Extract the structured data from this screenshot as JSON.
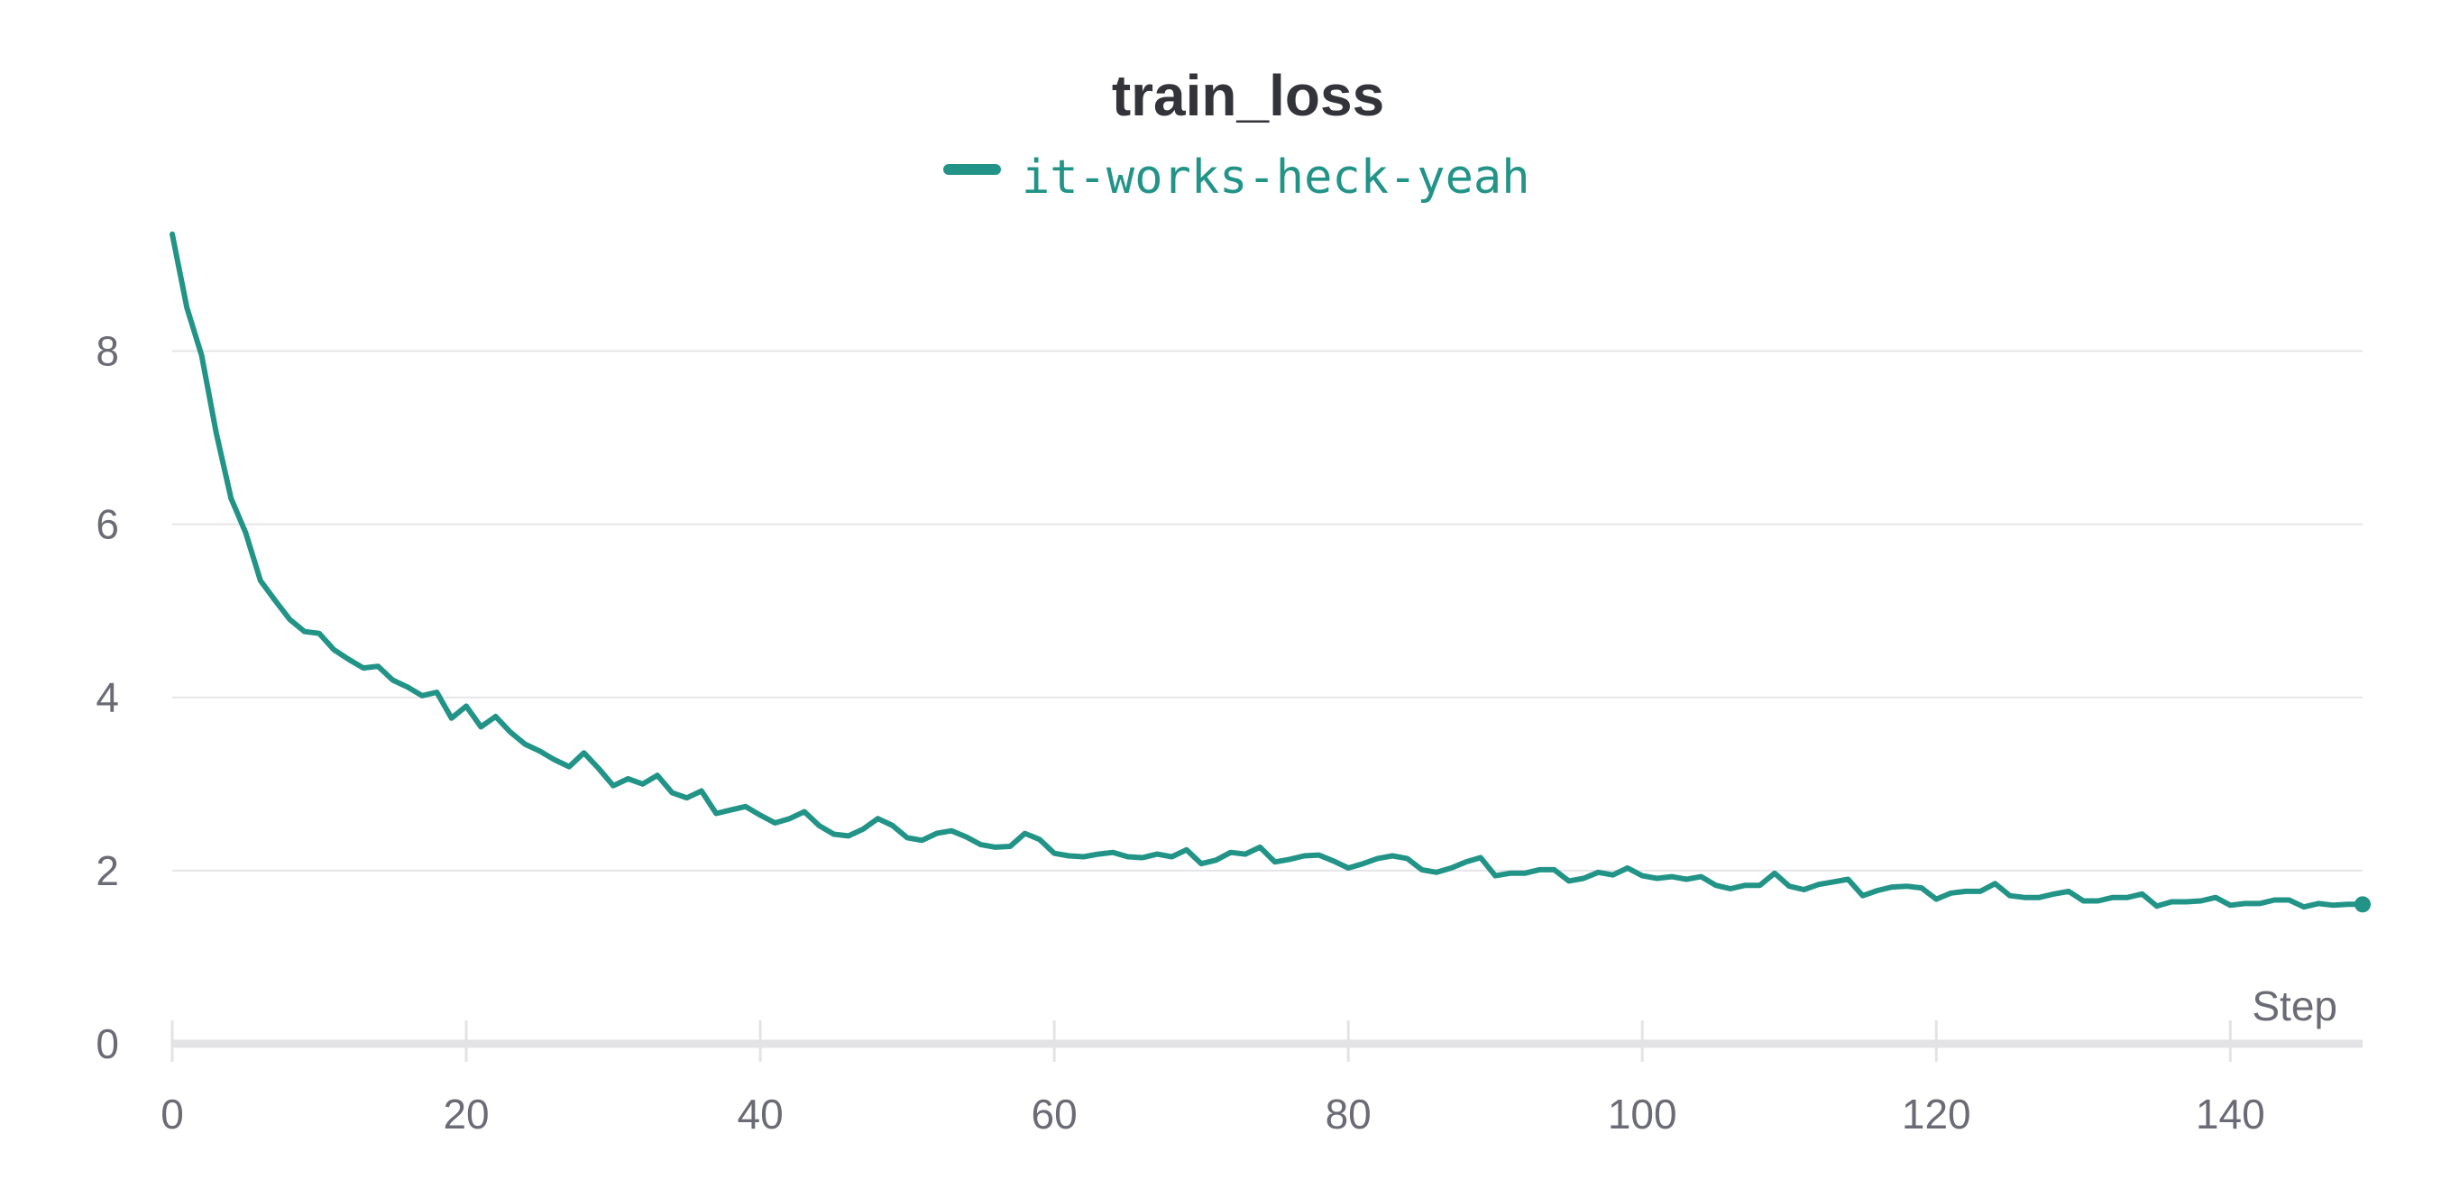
{
  "colors": {
    "series": "#229487",
    "grid": "#e5e5e8",
    "axis": "#e3e3e6",
    "text": "#6b6b76",
    "title": "#33333a"
  },
  "chart_data": {
    "type": "line",
    "title": "train_loss",
    "xlabel": "Step",
    "ylabel": "",
    "xlim": [
      0,
      149
    ],
    "ylim": [
      0,
      9.4
    ],
    "x_ticks": [
      0,
      20,
      40,
      60,
      80,
      100,
      120,
      140
    ],
    "y_ticks": [
      0,
      2,
      4,
      6,
      8
    ],
    "grid": true,
    "legend_position": "top-center",
    "series": [
      {
        "name": "it-works-heck-yeah",
        "color": "#229487",
        "y": [
          9.35,
          8.5,
          7.95,
          7.05,
          6.3,
          5.9,
          5.35,
          5.12,
          4.9,
          4.76,
          4.74,
          4.55,
          4.44,
          4.34,
          4.36,
          4.2,
          4.12,
          4.02,
          4.06,
          3.76,
          3.9,
          3.66,
          3.78,
          3.6,
          3.46,
          3.38,
          3.28,
          3.2,
          3.36,
          3.18,
          2.98,
          3.06,
          3.0,
          3.1,
          2.9,
          2.84,
          2.92,
          2.66,
          2.7,
          2.74,
          2.64,
          2.55,
          2.6,
          2.68,
          2.52,
          2.42,
          2.4,
          2.48,
          2.6,
          2.52,
          2.38,
          2.35,
          2.43,
          2.46,
          2.39,
          2.3,
          2.27,
          2.28,
          2.43,
          2.36,
          2.2,
          2.17,
          2.16,
          2.19,
          2.21,
          2.16,
          2.15,
          2.19,
          2.16,
          2.24,
          2.08,
          2.12,
          2.21,
          2.19,
          2.27,
          2.1,
          2.13,
          2.17,
          2.18,
          2.11,
          2.03,
          2.08,
          2.14,
          2.17,
          2.14,
          2.01,
          1.98,
          2.03,
          2.1,
          2.15,
          1.94,
          1.97,
          1.97,
          2.01,
          2.01,
          1.88,
          1.91,
          1.98,
          1.95,
          2.03,
          1.94,
          1.91,
          1.93,
          1.9,
          1.93,
          1.83,
          1.79,
          1.83,
          1.83,
          1.97,
          1.82,
          1.78,
          1.84,
          1.87,
          1.9,
          1.71,
          1.77,
          1.81,
          1.82,
          1.8,
          1.67,
          1.74,
          1.76,
          1.76,
          1.85,
          1.71,
          1.69,
          1.69,
          1.73,
          1.76,
          1.65,
          1.65,
          1.69,
          1.69,
          1.73,
          1.59,
          1.64,
          1.64,
          1.65,
          1.69,
          1.6,
          1.62,
          1.62,
          1.66,
          1.66,
          1.58,
          1.62,
          1.6,
          1.61,
          1.61
        ]
      }
    ]
  }
}
